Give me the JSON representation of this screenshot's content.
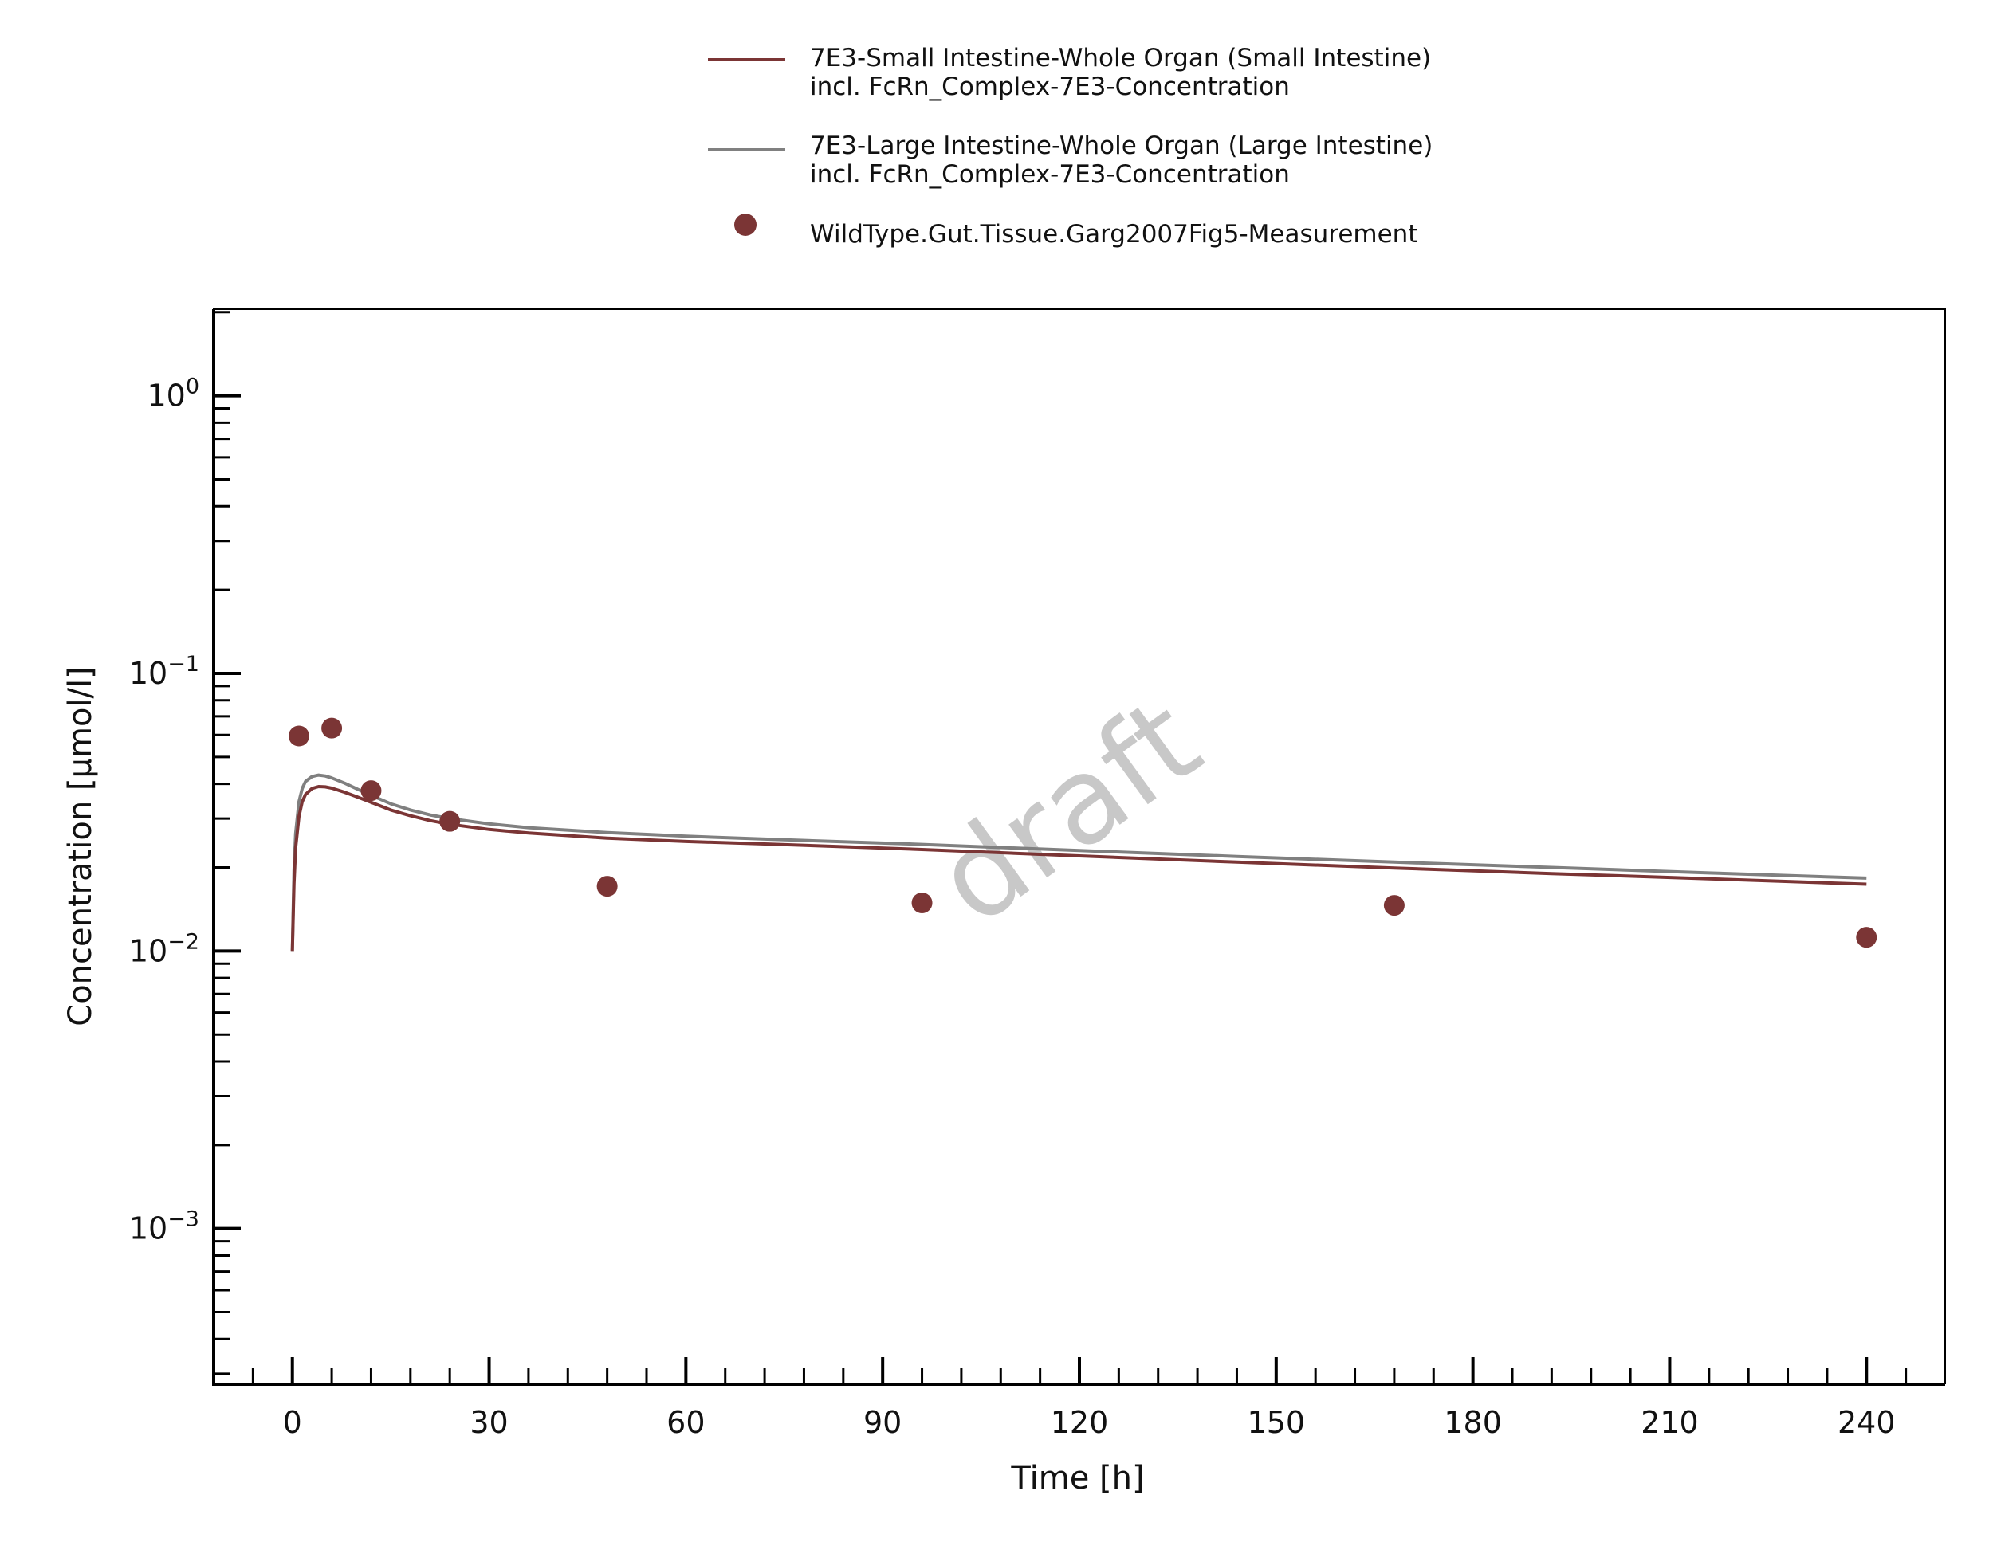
{
  "chart_data": {
    "type": "line",
    "xlabel": "Time [h]",
    "ylabel": "Concentration [µmol/l]",
    "xlim": [
      -12,
      252
    ],
    "ylim": [
      0.000275,
      2.05
    ],
    "yscale": "log",
    "x_ticks": [
      0,
      30,
      60,
      90,
      120,
      150,
      180,
      210,
      240
    ],
    "x_tick_labels": [
      "0",
      "30",
      "60",
      "90",
      "120",
      "150",
      "180",
      "210",
      "240"
    ],
    "y_ticks": [
      {
        "value": 1,
        "base": "10",
        "exp": "0"
      },
      {
        "value": 0.1,
        "base": "10",
        "exp": "−1"
      },
      {
        "value": 0.01,
        "base": "10",
        "exp": "−2"
      },
      {
        "value": 0.001,
        "base": "10",
        "exp": "−3"
      }
    ],
    "grid": false,
    "legend_position": "top-center",
    "watermark": "draft",
    "series": [
      {
        "name": "7E3-Small Intestine-Whole Organ (Small Intestine)",
        "name_line2": "incl. FcRn_Complex-7E3-Concentration",
        "kind": "line",
        "color": "#7b3535",
        "x": [
          0,
          0.25,
          0.5,
          1,
          1.5,
          2,
          3,
          4,
          5,
          6,
          8,
          10,
          12,
          15,
          18,
          21,
          24,
          30,
          36,
          48,
          60,
          72,
          96,
          120,
          144,
          168,
          192,
          216,
          240
        ],
        "y": [
          0.01,
          0.0175,
          0.0235,
          0.0305,
          0.0345,
          0.0366,
          0.0385,
          0.0391,
          0.039,
          0.0386,
          0.0373,
          0.0358,
          0.0343,
          0.0322,
          0.0307,
          0.0295,
          0.0286,
          0.0274,
          0.0266,
          0.0255,
          0.0248,
          0.0243,
          0.0232,
          0.022,
          0.0209,
          0.0199,
          0.019,
          0.0182,
          0.0174
        ]
      },
      {
        "name": "7E3-Large Intestine-Whole Organ (Large Intestine)",
        "name_line2": "incl. FcRn_Complex-7E3-Concentration",
        "kind": "line",
        "color": "#808080",
        "x": [
          0,
          0.25,
          0.5,
          1,
          1.5,
          2,
          3,
          4,
          5,
          6,
          8,
          10,
          12,
          15,
          18,
          21,
          24,
          30,
          36,
          48,
          60,
          72,
          96,
          120,
          144,
          168,
          192,
          216,
          240
        ],
        "y": [
          0.01,
          0.0195,
          0.0265,
          0.0345,
          0.0385,
          0.0408,
          0.0425,
          0.043,
          0.0427,
          0.042,
          0.0402,
          0.0382,
          0.0364,
          0.0339,
          0.0322,
          0.0309,
          0.03,
          0.0287,
          0.0278,
          0.0267,
          0.0259,
          0.0253,
          0.0242,
          0.023,
          0.0219,
          0.0209,
          0.02,
          0.0191,
          0.0183
        ]
      },
      {
        "name": "WildType.Gut.Tissue.Garg2007Fig5-Measurement",
        "kind": "scatter",
        "color": "#7b3535",
        "x": [
          1,
          6,
          12,
          24,
          48,
          96,
          168,
          240
        ],
        "y": [
          0.0595,
          0.0635,
          0.0378,
          0.0293,
          0.0171,
          0.0149,
          0.0146,
          0.0112
        ]
      }
    ]
  }
}
